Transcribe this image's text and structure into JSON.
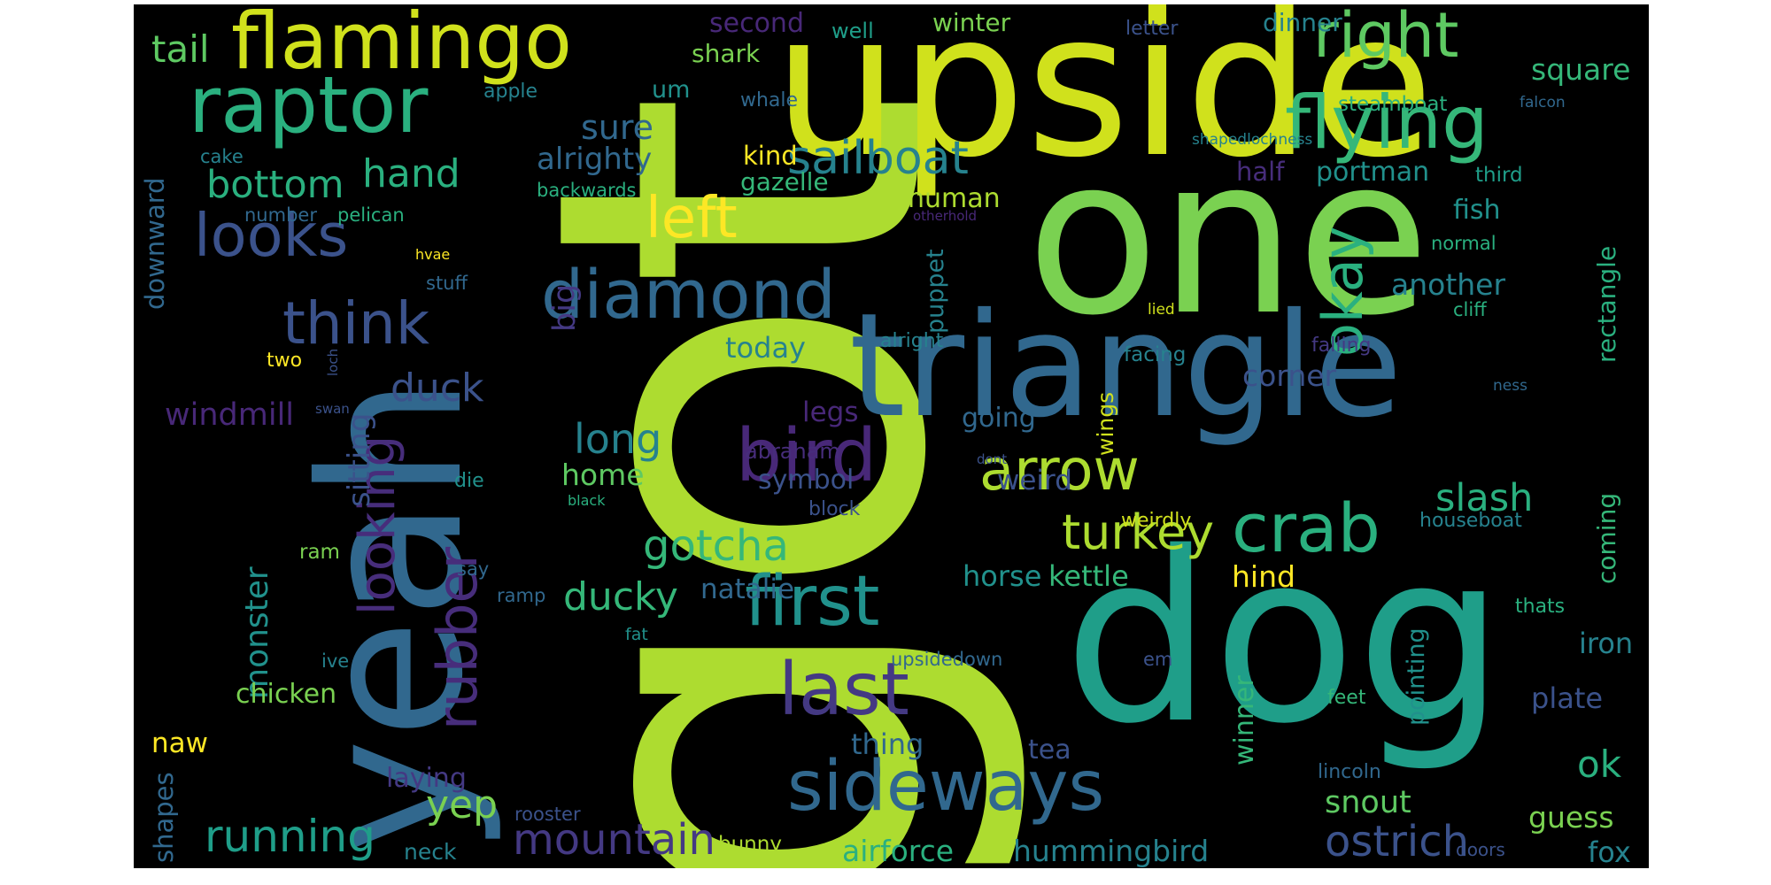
{
  "words": [
    {
      "text": "got",
      "color": "#addc30"
    },
    {
      "text": "upside",
      "color": "#d0e11c"
    },
    {
      "text": "one",
      "color": "#7ad151"
    },
    {
      "text": "yeah",
      "color": "#31688e"
    },
    {
      "text": "triangle",
      "color": "#31688e"
    },
    {
      "text": "dog",
      "color": "#1f9e89"
    },
    {
      "text": "flamingo",
      "color": "#d0e11c"
    },
    {
      "text": "raptor",
      "color": "#2ab07f"
    },
    {
      "text": "flying",
      "color": "#35b779"
    },
    {
      "text": "right",
      "color": "#5ec962"
    },
    {
      "text": "looks",
      "color": "#3b528b"
    },
    {
      "text": "diamond",
      "color": "#31688e"
    },
    {
      "text": "think",
      "color": "#3b528b"
    },
    {
      "text": "left",
      "color": "#fde725"
    },
    {
      "text": "sailboat",
      "color": "#26828e"
    },
    {
      "text": "okay",
      "color": "#2ab07f"
    },
    {
      "text": "bird",
      "color": "#482878"
    },
    {
      "text": "arrow",
      "color": "#addc30"
    },
    {
      "text": "crab",
      "color": "#2ab07f"
    },
    {
      "text": "first",
      "color": "#21918c"
    },
    {
      "text": "last",
      "color": "#443983"
    },
    {
      "text": "sideways",
      "color": "#31688e"
    },
    {
      "text": "looking",
      "color": "#472d7b"
    },
    {
      "text": "rubber",
      "color": "#472d7b"
    },
    {
      "text": "turkey",
      "color": "#addc30"
    },
    {
      "text": "gotcha",
      "color": "#35b779"
    },
    {
      "text": "ducky",
      "color": "#35b779"
    },
    {
      "text": "monster",
      "color": "#21918c"
    },
    {
      "text": "running",
      "color": "#1f9e89"
    },
    {
      "text": "mountain",
      "color": "#443983"
    },
    {
      "text": "ostrich",
      "color": "#3b528b"
    },
    {
      "text": "bottom",
      "color": "#2ab07f"
    },
    {
      "text": "tail",
      "color": "#5ec962"
    },
    {
      "text": "hand",
      "color": "#2ab07f"
    },
    {
      "text": "sure",
      "color": "#31688e"
    },
    {
      "text": "alrighty",
      "color": "#31688e"
    },
    {
      "text": "long",
      "color": "#26828e"
    },
    {
      "text": "home",
      "color": "#5ec962"
    },
    {
      "text": "duck",
      "color": "#3b528b"
    },
    {
      "text": "windmill",
      "color": "#482878"
    },
    {
      "text": "sitting",
      "color": "#3b528b"
    },
    {
      "text": "big",
      "color": "#443983"
    },
    {
      "text": "today",
      "color": "#26828e"
    },
    {
      "text": "slash",
      "color": "#2ab07f"
    },
    {
      "text": "yep",
      "color": "#7ad151"
    },
    {
      "text": "kettle",
      "color": "#35b779"
    },
    {
      "text": "horse",
      "color": "#21918c"
    },
    {
      "text": "natalie",
      "color": "#31688e"
    },
    {
      "text": "hind",
      "color": "#fde725"
    },
    {
      "text": "snout",
      "color": "#5ec962"
    },
    {
      "text": "ok",
      "color": "#2ab07f"
    },
    {
      "text": "plate",
      "color": "#3b528b"
    },
    {
      "text": "iron",
      "color": "#26828e"
    },
    {
      "text": "guess",
      "color": "#7ad151"
    },
    {
      "text": "fox",
      "color": "#26828e"
    },
    {
      "text": "airforce",
      "color": "#2ab07f"
    },
    {
      "text": "hummingbird",
      "color": "#26828e"
    },
    {
      "text": "corner",
      "color": "#3b528b"
    },
    {
      "text": "another",
      "color": "#26828e"
    },
    {
      "text": "square",
      "color": "#35b779"
    },
    {
      "text": "rectangle",
      "color": "#2ab07f"
    },
    {
      "text": "coming",
      "color": "#35b779"
    },
    {
      "text": "fish",
      "color": "#21918c"
    },
    {
      "text": "portman",
      "color": "#21918c"
    },
    {
      "text": "half",
      "color": "#472d7b"
    },
    {
      "text": "weird",
      "color": "#3b528b"
    },
    {
      "text": "symbol",
      "color": "#3b528b"
    },
    {
      "text": "going",
      "color": "#31688e"
    },
    {
      "text": "legs",
      "color": "#482878"
    },
    {
      "text": "abraham",
      "color": "#472d7b"
    },
    {
      "text": "puppet",
      "color": "#26828e"
    },
    {
      "text": "human",
      "color": "#addc30"
    },
    {
      "text": "gazelle",
      "color": "#35b779"
    },
    {
      "text": "kind",
      "color": "#fde725"
    },
    {
      "text": "second",
      "color": "#482878"
    },
    {
      "text": "shark",
      "color": "#7ad151"
    },
    {
      "text": "winter",
      "color": "#7ad151"
    },
    {
      "text": "dinner",
      "color": "#26828e"
    },
    {
      "text": "steamboat",
      "color": "#2ab07f"
    },
    {
      "text": "um",
      "color": "#21918c"
    },
    {
      "text": "well",
      "color": "#1f9e89"
    },
    {
      "text": "letter",
      "color": "#3b528b"
    },
    {
      "text": "whale",
      "color": "#31688e"
    },
    {
      "text": "apple",
      "color": "#26828e"
    },
    {
      "text": "falcon",
      "color": "#31688e"
    },
    {
      "text": "shapedlochness",
      "color": "#26828e"
    },
    {
      "text": "third",
      "color": "#1f9e89"
    },
    {
      "text": "cake",
      "color": "#26828e"
    },
    {
      "text": "downward",
      "color": "#31688e"
    },
    {
      "text": "backwards",
      "color": "#2ab07f"
    },
    {
      "text": "number",
      "color": "#31688e"
    },
    {
      "text": "pelican",
      "color": "#2ab07f"
    },
    {
      "text": "otherhold",
      "color": "#482878"
    },
    {
      "text": "hvae",
      "color": "#fde725"
    },
    {
      "text": "stuff",
      "color": "#31688e"
    },
    {
      "text": "normal",
      "color": "#2ab07f"
    },
    {
      "text": "cliff",
      "color": "#2ab07f"
    },
    {
      "text": "lied",
      "color": "#d0e11c"
    },
    {
      "text": "falling",
      "color": "#443983"
    },
    {
      "text": "facing",
      "color": "#26828e"
    },
    {
      "text": "alright",
      "color": "#26828e"
    },
    {
      "text": "two",
      "color": "#fde725"
    },
    {
      "text": "loch",
      "color": "#3b528b"
    },
    {
      "text": "swan",
      "color": "#3b528b"
    },
    {
      "text": "ness",
      "color": "#31688e"
    },
    {
      "text": "wings",
      "color": "#d0e11c"
    },
    {
      "text": "dont",
      "color": "#3b528b"
    },
    {
      "text": "black",
      "color": "#2ab07f"
    },
    {
      "text": "die",
      "color": "#21918c"
    },
    {
      "text": "block",
      "color": "#3b528b"
    },
    {
      "text": "weirdly",
      "color": "#d0e11c"
    },
    {
      "text": "houseboat",
      "color": "#26828e"
    },
    {
      "text": "ram",
      "color": "#7ad151"
    },
    {
      "text": "say",
      "color": "#31688e"
    },
    {
      "text": "ramp",
      "color": "#31688e"
    },
    {
      "text": "fat",
      "color": "#21918c"
    },
    {
      "text": "chicken",
      "color": "#7ad151"
    },
    {
      "text": "ive",
      "color": "#26828e"
    },
    {
      "text": "naw",
      "color": "#fde725"
    },
    {
      "text": "shapes",
      "color": "#31688e"
    },
    {
      "text": "laying",
      "color": "#443983"
    },
    {
      "text": "thing",
      "color": "#31688e"
    },
    {
      "text": "tea",
      "color": "#3b528b"
    },
    {
      "text": "neck",
      "color": "#26828e"
    },
    {
      "text": "rooster",
      "color": "#3b528b"
    },
    {
      "text": "bunny",
      "color": "#addc30"
    },
    {
      "text": "upsidedown",
      "color": "#31688e"
    },
    {
      "text": "em",
      "color": "#3b528b"
    },
    {
      "text": "winner",
      "color": "#35b779"
    },
    {
      "text": "feet",
      "color": "#35b779"
    },
    {
      "text": "pointing",
      "color": "#21918c"
    },
    {
      "text": "thats",
      "color": "#2ab07f"
    },
    {
      "text": "lincoln",
      "color": "#31688e"
    },
    {
      "text": "doors",
      "color": "#3b528b"
    }
  ]
}
